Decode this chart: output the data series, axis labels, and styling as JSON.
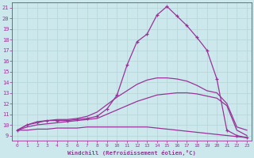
{
  "xlabel": "Windchill (Refroidissement éolien,°C)",
  "background_color": "#cce8ec",
  "grid_color": "#aacccc",
  "line_color": "#993399",
  "xlim": [
    -0.5,
    23.5
  ],
  "ylim": [
    8.5,
    21.5
  ],
  "xticks": [
    0,
    1,
    2,
    3,
    4,
    5,
    6,
    7,
    8,
    9,
    10,
    11,
    12,
    13,
    14,
    15,
    16,
    17,
    18,
    19,
    20,
    21,
    22,
    23
  ],
  "yticks": [
    9,
    10,
    11,
    12,
    13,
    14,
    15,
    16,
    17,
    18,
    19,
    20,
    21
  ],
  "curve1_x": [
    0,
    1,
    2,
    3,
    4,
    5,
    6,
    7,
    8,
    9,
    10,
    11,
    12,
    13,
    14,
    15,
    16,
    17,
    18,
    19,
    20,
    21,
    22,
    23
  ],
  "curve1_y": [
    9.5,
    10.0,
    10.2,
    10.4,
    10.4,
    10.4,
    10.5,
    10.6,
    10.8,
    11.5,
    12.8,
    15.6,
    17.8,
    18.5,
    20.3,
    21.1,
    20.2,
    19.3,
    18.2,
    17.0,
    14.3,
    9.5,
    9.0,
    8.8
  ],
  "curve2_x": [
    0,
    1,
    2,
    3,
    4,
    5,
    6,
    7,
    8,
    9,
    10,
    11,
    12,
    13,
    14,
    15,
    16,
    17,
    18,
    19,
    20,
    21,
    22,
    23
  ],
  "curve2_y": [
    9.5,
    10.0,
    10.3,
    10.4,
    10.5,
    10.5,
    10.6,
    10.8,
    11.2,
    11.9,
    12.6,
    13.2,
    13.8,
    14.2,
    14.4,
    14.4,
    14.3,
    14.1,
    13.7,
    13.2,
    13.0,
    12.0,
    9.8,
    9.5
  ],
  "curve3_x": [
    0,
    1,
    2,
    3,
    4,
    5,
    6,
    7,
    8,
    9,
    10,
    11,
    12,
    13,
    14,
    15,
    16,
    17,
    18,
    19,
    20,
    21,
    22,
    23
  ],
  "curve3_y": [
    9.5,
    9.8,
    10.0,
    10.1,
    10.2,
    10.3,
    10.4,
    10.5,
    10.6,
    11.0,
    11.4,
    11.8,
    12.2,
    12.5,
    12.8,
    12.9,
    13.0,
    13.0,
    12.9,
    12.7,
    12.5,
    11.8,
    9.5,
    9.0
  ],
  "curve4_x": [
    0,
    1,
    2,
    3,
    4,
    5,
    6,
    7,
    8,
    9,
    10,
    11,
    12,
    13,
    14,
    15,
    16,
    17,
    18,
    19,
    20,
    21,
    22,
    23
  ],
  "curve4_y": [
    9.5,
    9.5,
    9.6,
    9.6,
    9.7,
    9.7,
    9.7,
    9.8,
    9.8,
    9.8,
    9.8,
    9.8,
    9.8,
    9.8,
    9.7,
    9.6,
    9.5,
    9.4,
    9.3,
    9.2,
    9.1,
    9.0,
    8.9,
    8.8
  ],
  "marker_curves": [
    0,
    1
  ],
  "no_marker_curves": [
    2,
    3
  ]
}
